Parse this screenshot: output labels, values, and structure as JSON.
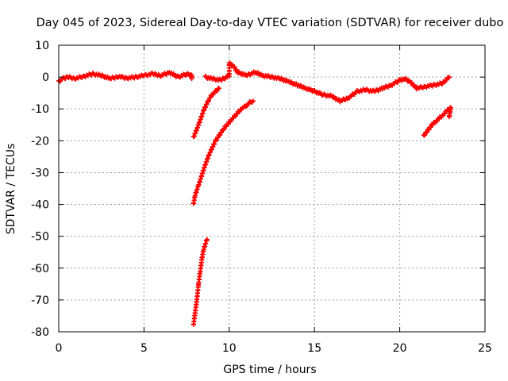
{
  "chart_data": {
    "type": "scatter",
    "title": "Day 045 of 2023, Sidereal Day-to-day VTEC variation (SDTVAR) for receiver dubo",
    "xlabel": "GPS time / hours",
    "ylabel": "SDTVAR / TECUs",
    "xlim": [
      0,
      25
    ],
    "ylim": [
      -80,
      10
    ],
    "xticks": [
      0,
      5,
      10,
      15,
      20,
      25
    ],
    "yticks": [
      10,
      0,
      -10,
      -20,
      -30,
      -40,
      -50,
      -60,
      -70,
      -80
    ],
    "grid": true,
    "marker": "plus",
    "color": "#ff0000",
    "series": [
      {
        "name": "arc-1",
        "points": [
          [
            0.0,
            -1.5
          ],
          [
            0.2,
            -0.5
          ],
          [
            0.5,
            0.0
          ],
          [
            1.0,
            -0.4
          ],
          [
            1.5,
            0.3
          ],
          [
            2.0,
            1.0
          ],
          [
            2.5,
            0.5
          ],
          [
            3.0,
            -0.5
          ],
          [
            3.5,
            0.2
          ],
          [
            4.0,
            -0.3
          ],
          [
            4.5,
            0.0
          ],
          [
            5.0,
            0.5
          ],
          [
            5.5,
            1.0
          ],
          [
            6.0,
            0.5
          ],
          [
            6.5,
            1.5
          ],
          [
            7.0,
            0.0
          ],
          [
            7.5,
            1.0
          ],
          [
            7.8,
            0.5
          ],
          [
            7.8,
            -0.5
          ]
        ]
      },
      {
        "name": "arc-2",
        "points": [
          [
            7.9,
            -19.0
          ],
          [
            8.2,
            -15.0
          ],
          [
            8.5,
            -10.5
          ],
          [
            8.8,
            -7.0
          ],
          [
            9.0,
            -5.5
          ],
          [
            9.2,
            -4.5
          ],
          [
            9.4,
            -3.5
          ]
        ]
      },
      {
        "name": "arc-3",
        "points": [
          [
            7.9,
            -40.0
          ],
          [
            8.0,
            -37.0
          ],
          [
            8.2,
            -34.0
          ],
          [
            8.5,
            -29.0
          ],
          [
            8.8,
            -24.5
          ],
          [
            9.2,
            -20.0
          ],
          [
            9.7,
            -16.0
          ],
          [
            10.2,
            -13.0
          ],
          [
            10.7,
            -10.0
          ],
          [
            11.0,
            -9.0
          ],
          [
            11.2,
            -8.0
          ],
          [
            11.4,
            -7.5
          ]
        ]
      },
      {
        "name": "arc-4",
        "points": [
          [
            7.9,
            -78.0
          ],
          [
            8.0,
            -74.0
          ],
          [
            8.1,
            -70.0
          ],
          [
            8.2,
            -65.0
          ],
          [
            8.3,
            -61.0
          ],
          [
            8.4,
            -57.0
          ],
          [
            8.5,
            -54.0
          ],
          [
            8.7,
            -51.0
          ]
        ]
      },
      {
        "name": "arc-5",
        "points": [
          [
            8.6,
            0.0
          ],
          [
            9.0,
            -0.5
          ],
          [
            9.5,
            -1.0
          ],
          [
            10.0,
            0.5
          ],
          [
            10.0,
            4.5
          ],
          [
            10.3,
            3.0
          ],
          [
            10.5,
            1.5
          ],
          [
            11.0,
            0.5
          ],
          [
            11.5,
            1.5
          ],
          [
            12.0,
            0.5
          ],
          [
            12.5,
            0.0
          ],
          [
            13.0,
            -0.5
          ],
          [
            13.5,
            -1.5
          ],
          [
            14.0,
            -2.5
          ],
          [
            14.5,
            -3.5
          ],
          [
            15.0,
            -4.5
          ],
          [
            15.5,
            -5.5
          ],
          [
            16.0,
            -6.0
          ],
          [
            16.5,
            -7.5
          ],
          [
            17.0,
            -6.5
          ],
          [
            17.5,
            -4.5
          ],
          [
            18.0,
            -4.0
          ],
          [
            18.5,
            -4.5
          ],
          [
            19.0,
            -3.5
          ],
          [
            19.5,
            -2.5
          ],
          [
            20.0,
            -1.0
          ],
          [
            20.3,
            -0.5
          ],
          [
            20.6,
            -1.5
          ],
          [
            21.0,
            -3.5
          ],
          [
            21.5,
            -3.0
          ],
          [
            22.0,
            -2.5
          ],
          [
            22.5,
            -2.0
          ],
          [
            22.9,
            0.0
          ]
        ]
      },
      {
        "name": "arc-6",
        "points": [
          [
            21.4,
            -18.5
          ],
          [
            21.6,
            -17.0
          ],
          [
            21.9,
            -15.0
          ],
          [
            22.2,
            -13.5
          ],
          [
            22.5,
            -12.0
          ],
          [
            22.8,
            -10.5
          ],
          [
            23.0,
            -9.5
          ],
          [
            22.9,
            -12.5
          ]
        ]
      }
    ]
  }
}
